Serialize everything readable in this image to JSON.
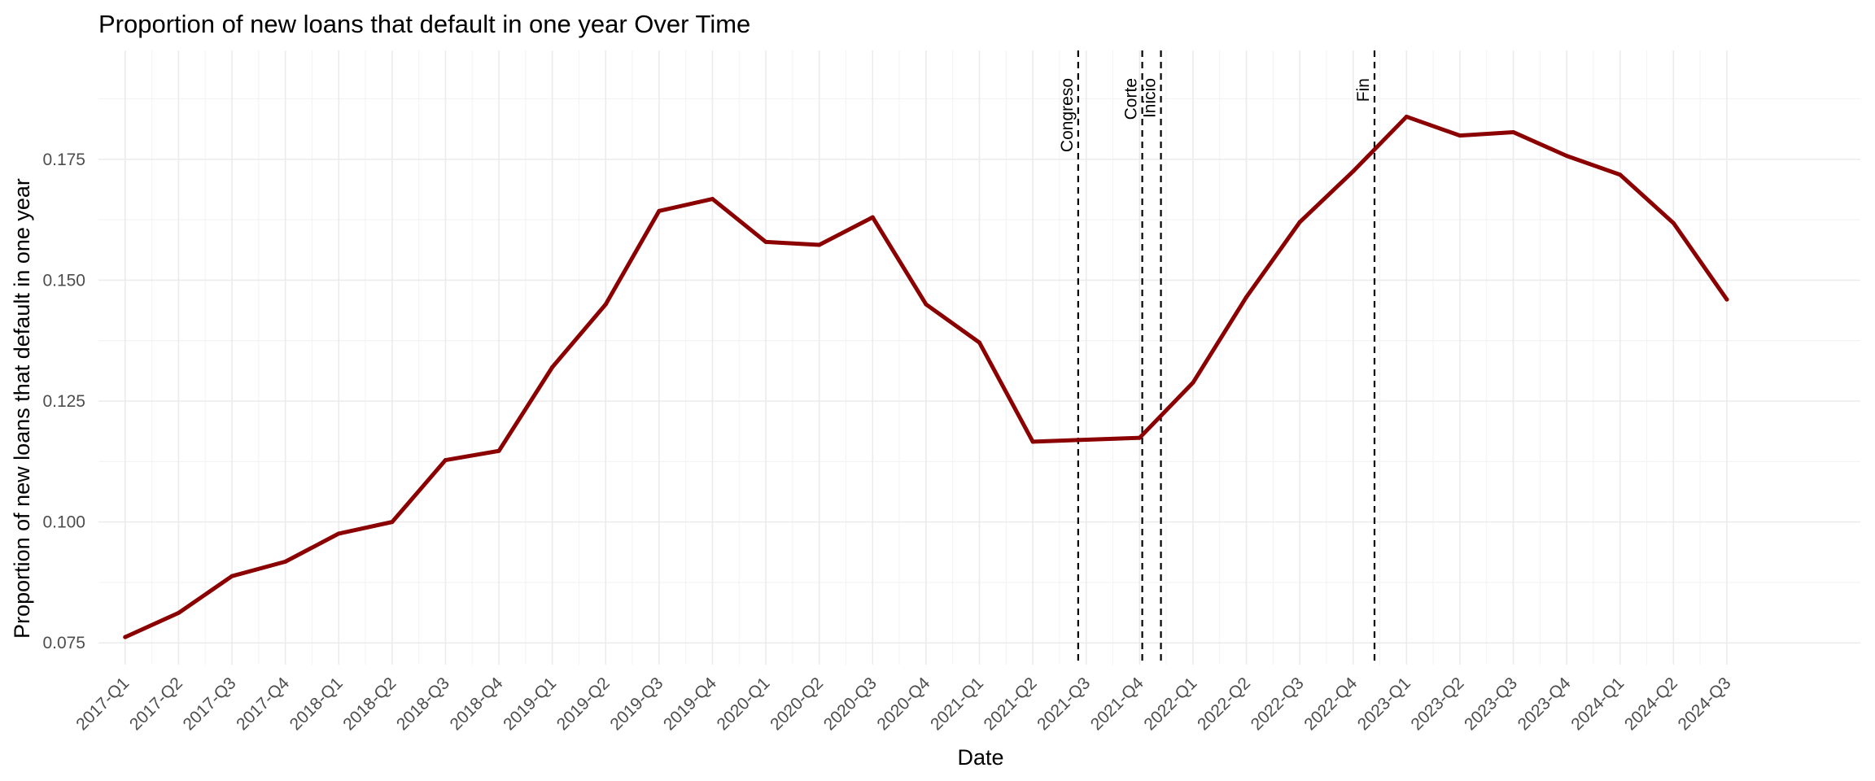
{
  "chart_data": {
    "type": "line",
    "title": "Proportion of new loans that default in one year Over Time",
    "xlabel": "Date",
    "ylabel": "Proportion of new loans that default in one year",
    "categories": [
      "2017-Q1",
      "2017-Q2",
      "2017-Q3",
      "2017-Q4",
      "2018-Q1",
      "2018-Q2",
      "2018-Q3",
      "2018-Q4",
      "2019-Q1",
      "2019-Q2",
      "2019-Q3",
      "2019-Q4",
      "2020-Q1",
      "2020-Q2",
      "2020-Q3",
      "2020-Q4",
      "2021-Q1",
      "2021-Q2",
      "2021-Q3",
      "2021-Q4",
      "2022-Q1",
      "2022-Q2",
      "2022-Q3",
      "2022-Q4",
      "2023-Q1",
      "2023-Q2",
      "2023-Q3",
      "2023-Q4",
      "2024-Q1",
      "2024-Q2",
      "2024-Q3"
    ],
    "series": [
      {
        "color": "#8b0000",
        "values": [
          0.0762,
          0.0812,
          0.0888,
          0.0918,
          0.0976,
          0.1,
          0.1128,
          0.1147,
          0.132,
          0.145,
          0.1643,
          0.1668,
          0.1579,
          0.1573,
          0.163,
          0.145,
          0.1371,
          0.1166,
          0.117,
          0.1174,
          0.1288,
          0.1465,
          0.162,
          0.1725,
          0.1838,
          0.1799,
          0.1806,
          0.1757,
          0.1718,
          0.1618,
          0.146
        ]
      }
    ],
    "yticks": [
      0.075,
      0.1,
      0.125,
      0.15,
      0.175
    ],
    "ytick_labels": [
      "0.075",
      "0.100",
      "0.125",
      "0.150",
      "0.175"
    ],
    "ylim": [
      0.0705,
      0.1975
    ],
    "xlim": [
      -0.5,
      32.5
    ],
    "grid": true,
    "annotations": [
      {
        "label": "Congreso",
        "x": 17.85
      },
      {
        "label": "Corte",
        "x": 19.05
      },
      {
        "label": "Inicio",
        "x": 19.4
      },
      {
        "label": "Fin",
        "x": 23.4
      }
    ],
    "vline_color": "#000000"
  }
}
